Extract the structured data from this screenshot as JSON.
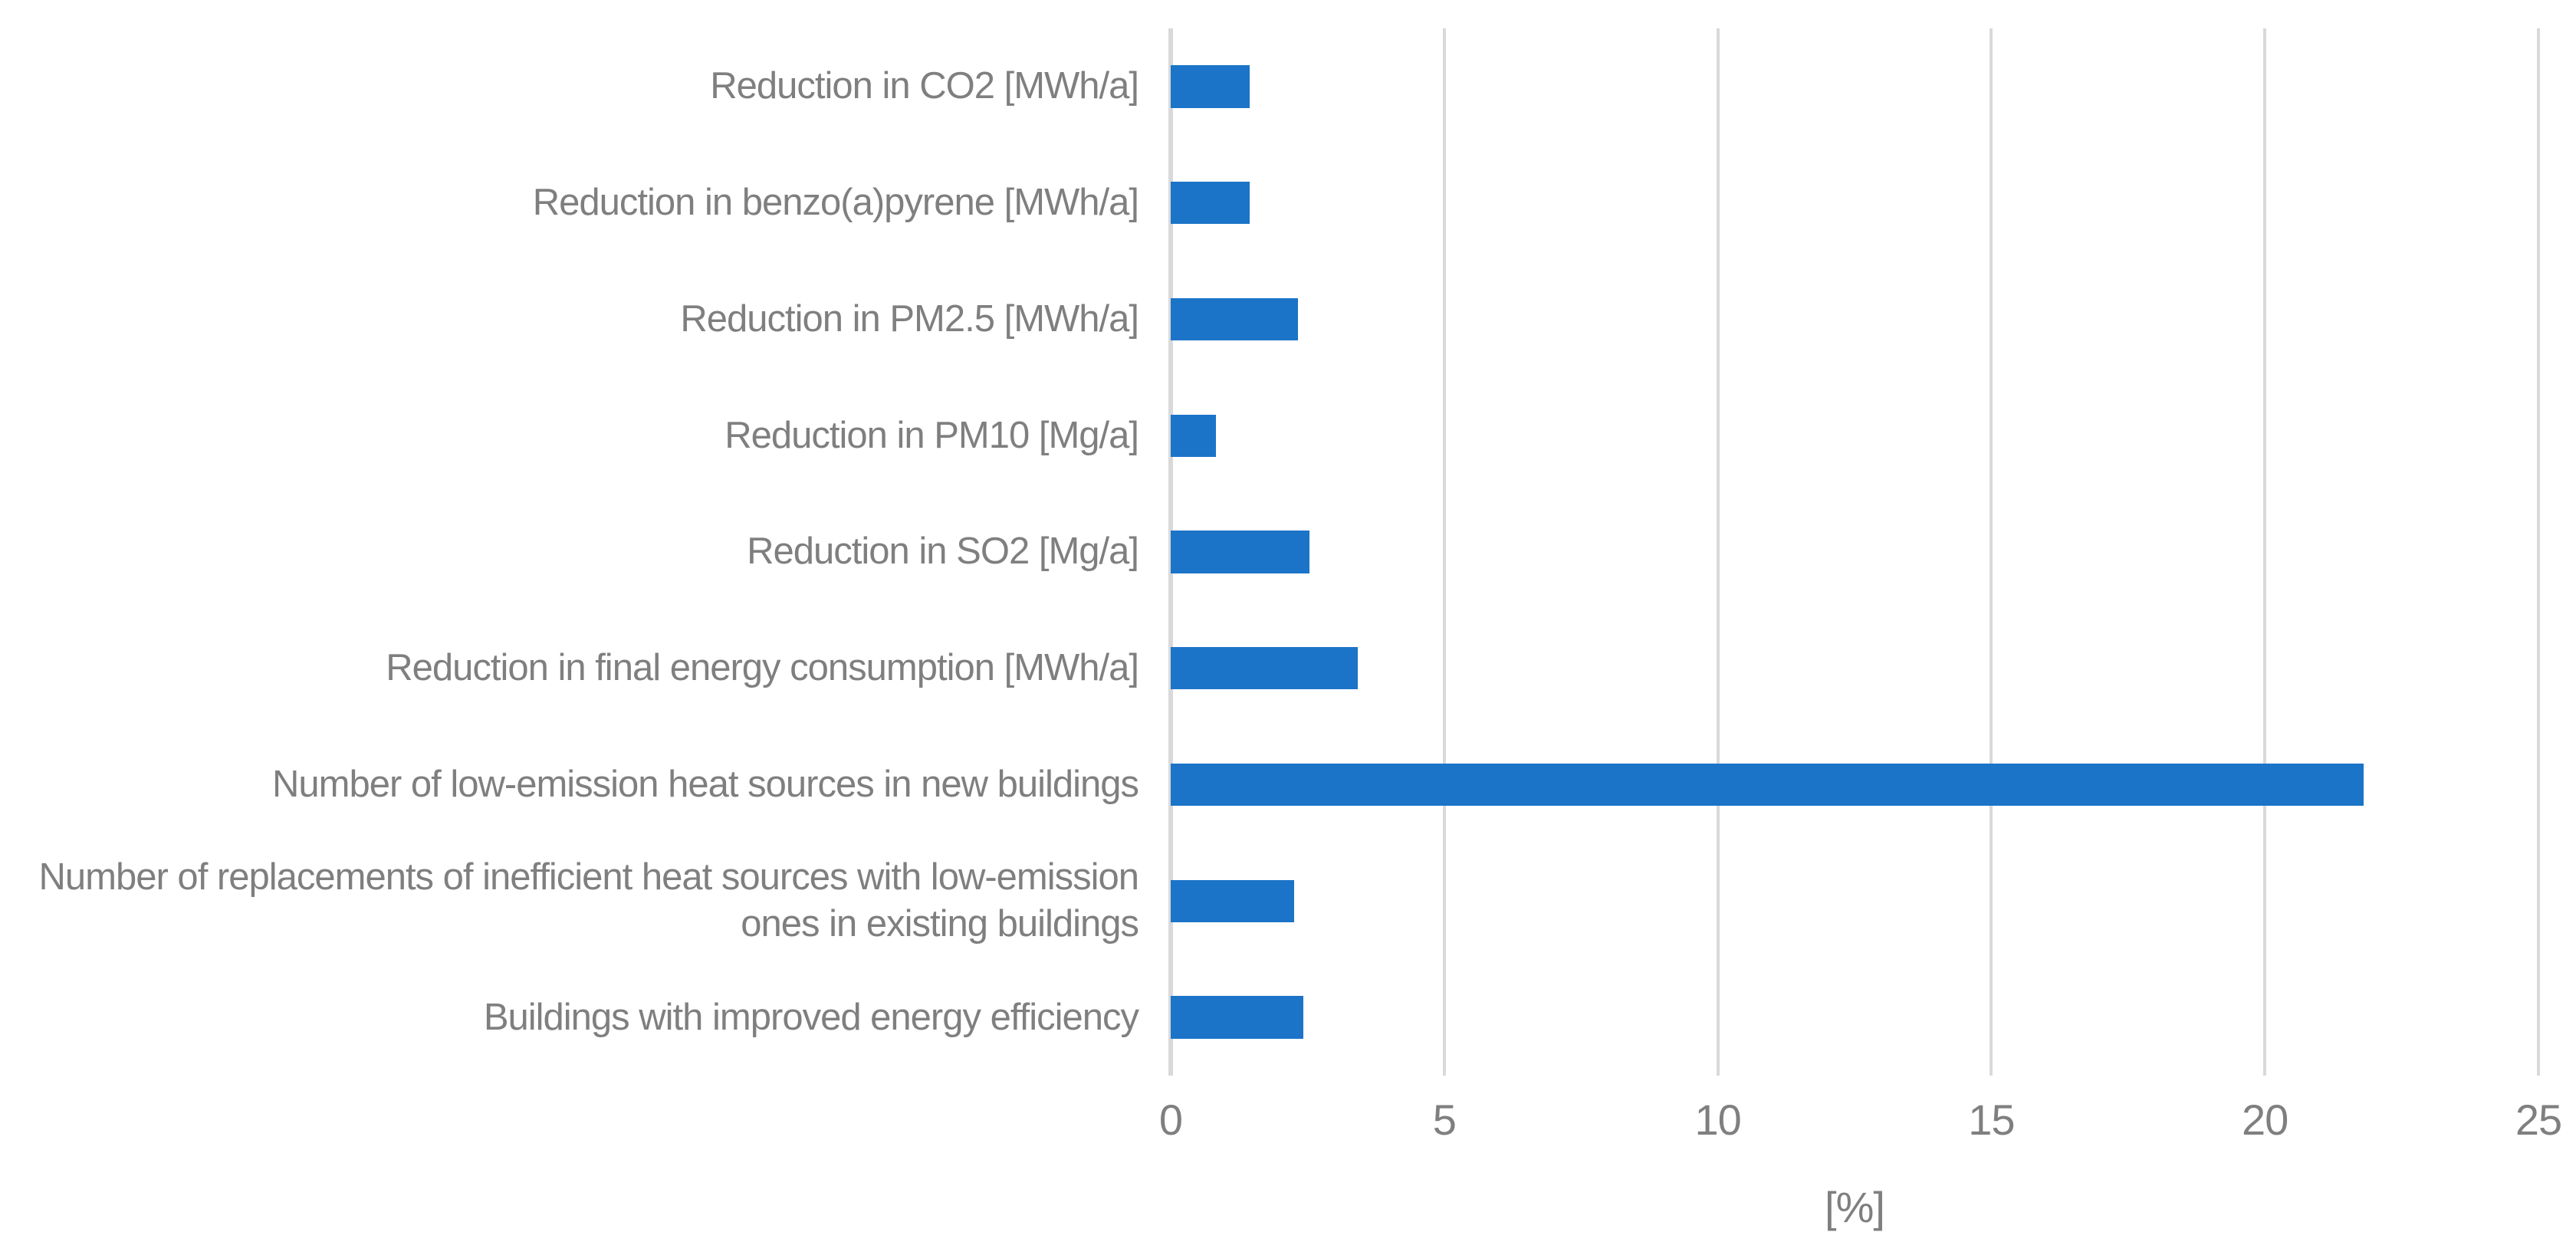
{
  "colors": {
    "bar": "#1B74C8",
    "grid": "#D9D9D9",
    "text": "#7F7F7F",
    "background": "#FFFFFF"
  },
  "chart_data": {
    "type": "bar",
    "orientation": "horizontal",
    "title": "",
    "xlabel": "[%]",
    "ylabel": "",
    "xlim": [
      0,
      25
    ],
    "xticks": [
      0,
      5,
      10,
      15,
      20,
      25
    ],
    "grid": true,
    "legend": false,
    "categories": [
      "Reduction in CO2 [MWh/a]",
      "Reduction in benzo(a)pyrene [MWh/a]",
      "Reduction in PM2.5 [MWh/a]",
      "Reduction in PM10 [Mg/a]",
      "Reduction in SO2 [Mg/a]",
      "Reduction in final energy consumption [MWh/a]",
      "Number of low-emission heat sources in new buildings",
      "Number of replacements of inefficient heat sources with low-emission ones in existing buildings",
      "Buildings with improved energy efficiency"
    ],
    "values": [
      1.45,
      1.45,
      2.33,
      0.83,
      2.53,
      3.42,
      21.8,
      2.26,
      2.43
    ]
  }
}
